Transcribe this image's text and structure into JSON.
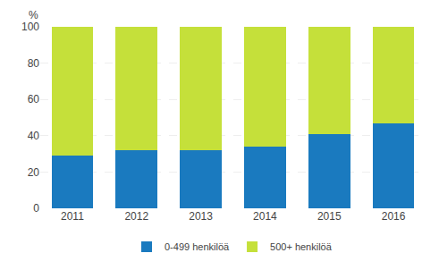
{
  "chart_data": {
    "type": "bar",
    "stacked": true,
    "ylabel": "%",
    "categories": [
      "2011",
      "2012",
      "2013",
      "2014",
      "2015",
      "2016"
    ],
    "series": [
      {
        "name": "0-499 henkilöä",
        "color": "#1a7abf",
        "values": [
          29,
          32,
          32,
          34,
          41,
          47
        ]
      },
      {
        "name": "500+ henkilöä",
        "color": "#c5e03a",
        "values": [
          71,
          68,
          68,
          66,
          59,
          53
        ]
      }
    ],
    "ylim": [
      0,
      100
    ],
    "yticks": [
      0,
      20,
      40,
      60,
      80,
      100
    ],
    "grid": true,
    "legend": "bottom"
  }
}
